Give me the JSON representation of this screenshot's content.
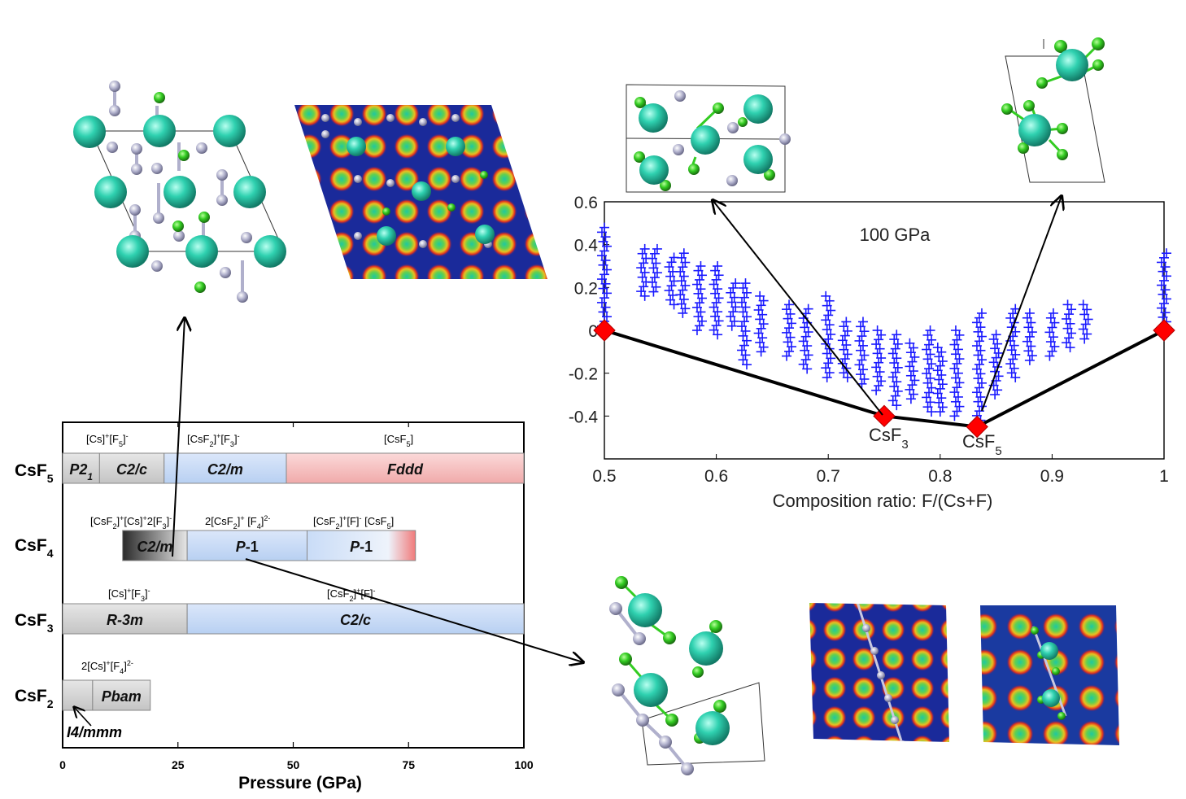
{
  "phase_diagram": {
    "xlabel": "Pressure (GPa)",
    "xticks": [
      "0",
      "25",
      "50",
      "75",
      "100"
    ],
    "rows": [
      {
        "compound": "CsF5",
        "formula_main": "CsF",
        "formula_sub": "5",
        "phases": [
          {
            "label": "P21",
            "label_main": "P2",
            "label_sub": "1",
            "from": 0,
            "to": 8,
            "color": "#d0d0d0"
          },
          {
            "label": "C2/c",
            "from": 8,
            "to": 22,
            "color": "#d0d0d0"
          },
          {
            "label": "C2/m",
            "from": 22,
            "to": 48.5,
            "color": "#c9dcf7"
          },
          {
            "label": "Fddd",
            "from": 48.5,
            "to": 100,
            "color": "#f6c2c2"
          }
        ],
        "annotations": [
          "[Cs]+[F5]-",
          "[CsF2]+[F3]-",
          "[CsF5]"
        ]
      },
      {
        "compound": "CsF4",
        "formula_main": "CsF",
        "formula_sub": "4",
        "phases": [
          {
            "label": "C2/m",
            "from": 13,
            "to": 27,
            "color": "#555555"
          },
          {
            "label": "P-1",
            "from": 27,
            "to": 53,
            "color": "#c9dcf7"
          },
          {
            "label": "P-1",
            "from": 53,
            "to": 76.5,
            "color": "#c9dcf7"
          }
        ],
        "annotations": [
          "[CsF2]+[Cs]+2[F3]-",
          "2[CsF2]+[F4]2-",
          "[CsF2]+[F]- [CsF5]"
        ]
      },
      {
        "compound": "CsF3",
        "formula_main": "CsF",
        "formula_sub": "3",
        "phases": [
          {
            "label": "R-3m",
            "from": 0,
            "to": 27,
            "color": "#d0d0d0"
          },
          {
            "label": "C2/c",
            "from": 27,
            "to": 100,
            "color": "#c9dcf7"
          }
        ],
        "annotations": [
          "[Cs]+[F3]-",
          "[CsF2]+[F]-"
        ]
      },
      {
        "compound": "CsF2",
        "formula_main": "CsF",
        "formula_sub": "2",
        "phases": [
          {
            "label": "I4/mmm",
            "from": 0,
            "to": 6.5,
            "color": "#d9d9d9"
          },
          {
            "label": "Pbam",
            "from": 6.5,
            "to": 19,
            "color": "#d9d9d9"
          }
        ],
        "annotations": [
          "2[Cs]+[F4]2-"
        ]
      }
    ]
  },
  "hull_chart": {
    "title": "100 GPa",
    "xlabel": "Composition ratio: F/(Cs+F)",
    "xticks": [
      "0.5",
      "0.6",
      "0.7",
      "0.8",
      "0.9",
      "1"
    ],
    "yticks": [
      "0.6",
      "0.4",
      "0.2",
      "0",
      "-0.2",
      "-0.4"
    ],
    "compound_labels": [
      {
        "main": "CsF",
        "sub": "3"
      },
      {
        "main": "CsF",
        "sub": "5"
      }
    ]
  },
  "chart_data": [
    {
      "type": "bar",
      "orientation": "horizontal-ranges",
      "xlabel": "Pressure (GPa)",
      "xlim": [
        0,
        100
      ],
      "categories": [
        "CsF5",
        "CsF4",
        "CsF3",
        "CsF2"
      ],
      "series": [
        {
          "category": "CsF5",
          "ranges": [
            {
              "phase": "P21",
              "from": 0,
              "to": 8
            },
            {
              "phase": "C2/c",
              "from": 8,
              "to": 22
            },
            {
              "phase": "C2/m",
              "from": 22,
              "to": 48.5
            },
            {
              "phase": "Fddd",
              "from": 48.5,
              "to": 100
            }
          ]
        },
        {
          "category": "CsF4",
          "ranges": [
            {
              "phase": "C2/m",
              "from": 13,
              "to": 27
            },
            {
              "phase": "P-1",
              "from": 27,
              "to": 53
            },
            {
              "phase": "P-1",
              "from": 53,
              "to": 76.5
            }
          ]
        },
        {
          "category": "CsF3",
          "ranges": [
            {
              "phase": "R-3m",
              "from": 0,
              "to": 27
            },
            {
              "phase": "C2/c",
              "from": 27,
              "to": 100
            }
          ]
        },
        {
          "category": "CsF2",
          "ranges": [
            {
              "phase": "I4/mmm",
              "from": 0,
              "to": 6.5
            },
            {
              "phase": "Pbam",
              "from": 6.5,
              "to": 19
            }
          ]
        }
      ]
    },
    {
      "type": "scatter",
      "title": "100 GPa",
      "xlabel": "Composition ratio: F/(Cs+F)",
      "ylabel": "",
      "xlim": [
        0.5,
        1.0
      ],
      "ylim": [
        -0.55,
        0.6
      ],
      "hull": {
        "x": [
          0.5,
          0.75,
          0.833,
          1.0
        ],
        "y": [
          0.0,
          -0.4,
          -0.45,
          0.0
        ],
        "labels": [
          "",
          "CsF3",
          "CsF5",
          ""
        ],
        "marker_color": "#ff0000",
        "line_color": "#000000"
      },
      "structures": {
        "marker": "+",
        "color": "#1a1aff",
        "columns": [
          {
            "x": 0.5,
            "y_min": 0.02,
            "y_max": 0.48
          },
          {
            "x": 0.535,
            "y_min": 0.16,
            "y_max": 0.38
          },
          {
            "x": 0.545,
            "y_min": 0.18,
            "y_max": 0.38
          },
          {
            "x": 0.56,
            "y_min": 0.12,
            "y_max": 0.34
          },
          {
            "x": 0.57,
            "y_min": 0.08,
            "y_max": 0.36
          },
          {
            "x": 0.585,
            "y_min": 0.0,
            "y_max": 0.3
          },
          {
            "x": 0.6,
            "y_min": -0.02,
            "y_max": 0.3
          },
          {
            "x": 0.615,
            "y_min": 0.02,
            "y_max": 0.22
          },
          {
            "x": 0.625,
            "y_min": -0.16,
            "y_max": 0.22
          },
          {
            "x": 0.64,
            "y_min": -0.1,
            "y_max": 0.16
          },
          {
            "x": 0.665,
            "y_min": -0.12,
            "y_max": 0.12
          },
          {
            "x": 0.68,
            "y_min": -0.18,
            "y_max": 0.1
          },
          {
            "x": 0.7,
            "y_min": -0.22,
            "y_max": 0.16
          },
          {
            "x": 0.715,
            "y_min": -0.22,
            "y_max": 0.04
          },
          {
            "x": 0.73,
            "y_min": -0.25,
            "y_max": 0.04
          },
          {
            "x": 0.745,
            "y_min": -0.28,
            "y_max": 0.0
          },
          {
            "x": 0.76,
            "y_min": -0.35,
            "y_max": -0.02
          },
          {
            "x": 0.775,
            "y_min": -0.32,
            "y_max": -0.06
          },
          {
            "x": 0.79,
            "y_min": -0.38,
            "y_max": 0.0
          },
          {
            "x": 0.8,
            "y_min": -0.38,
            "y_max": -0.08
          },
          {
            "x": 0.815,
            "y_min": -0.4,
            "y_max": 0.0
          },
          {
            "x": 0.835,
            "y_min": -0.42,
            "y_max": 0.08
          },
          {
            "x": 0.85,
            "y_min": -0.3,
            "y_max": -0.02
          },
          {
            "x": 0.865,
            "y_min": -0.22,
            "y_max": 0.1
          },
          {
            "x": 0.88,
            "y_min": -0.14,
            "y_max": 0.08
          },
          {
            "x": 0.9,
            "y_min": -0.12,
            "y_max": 0.08
          },
          {
            "x": 0.915,
            "y_min": -0.08,
            "y_max": 0.12
          },
          {
            "x": 0.93,
            "y_min": -0.04,
            "y_max": 0.12
          },
          {
            "x": 1.0,
            "y_min": 0.04,
            "y_max": 0.36
          }
        ]
      }
    }
  ],
  "colors": {
    "cs_atom": "#2fd1b0",
    "f_atom": "#33cc22",
    "grey_atom": "#a9a9c8",
    "map_low": "#1a2a9a",
    "map_mid": "#22c8a0",
    "map_high": "#e02020"
  }
}
